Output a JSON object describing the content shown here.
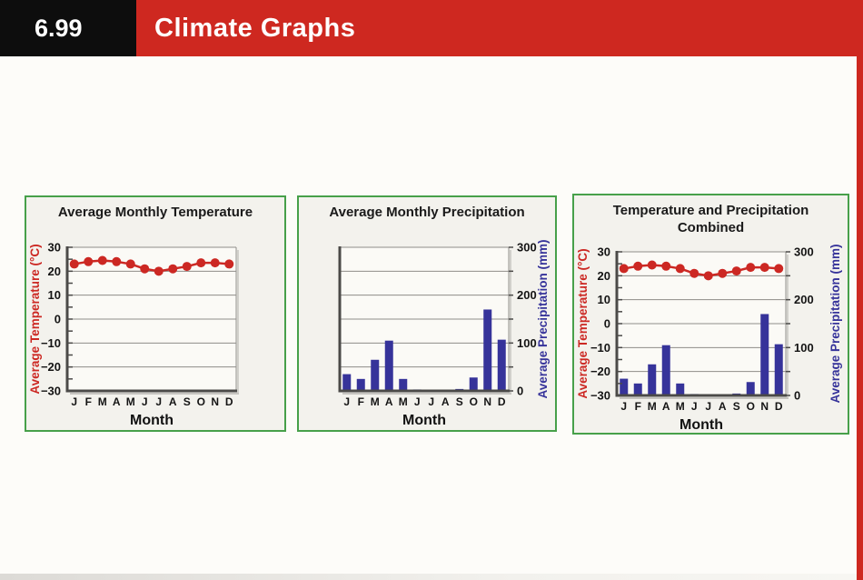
{
  "header": {
    "lesson_number": "6.99",
    "title": "Climate Graphs"
  },
  "colors": {
    "page_bg": "#fdfcf9",
    "header_black": "#0d0d0d",
    "header_red": "#ce2820",
    "panel_bg": "#f3f2ed",
    "panel_border": "#47a04a",
    "plot_bg": "#fbfaf6",
    "grid": "#8f8d89",
    "axis": "#4b4a48",
    "axis_shadow": "#c6c4c0",
    "temp": "#cc2823",
    "precip": "#36339a",
    "tick_text": "#141414"
  },
  "chart_data": [
    {
      "type": "line",
      "title_lines": [
        "Average Monthly Temperature"
      ],
      "categories": [
        "J",
        "F",
        "M",
        "A",
        "M",
        "J",
        "J",
        "A",
        "S",
        "O",
        "N",
        "D"
      ],
      "series": [
        {
          "name": "Average Temperature (°C)",
          "kind": "line",
          "axis": "left",
          "values": [
            23,
            24,
            24.5,
            24,
            23,
            21,
            20,
            21,
            22,
            23.5,
            23.5,
            23
          ]
        }
      ],
      "xlabel": "Month",
      "y_left": {
        "label": "Average Temperature (°C)",
        "lim": [
          -30,
          30
        ],
        "tick_labels": [
          "30",
          "20",
          "10",
          "0",
          "−10",
          "−20",
          "−30"
        ],
        "minor_step": 5
      },
      "grid": "on",
      "legend": "none"
    },
    {
      "type": "bar",
      "title_lines": [
        "Average Monthly Precipitation"
      ],
      "categories": [
        "J",
        "F",
        "M",
        "A",
        "M",
        "J",
        "J",
        "A",
        "S",
        "O",
        "N",
        "D"
      ],
      "series": [
        {
          "name": "Average Precipitation (mm)",
          "kind": "bar",
          "axis": "right",
          "values": [
            35,
            25,
            65,
            105,
            25,
            3,
            2,
            2,
            4,
            28,
            170,
            107
          ]
        }
      ],
      "xlabel": "Month",
      "y_right": {
        "label": "Average Precipitation (mm)",
        "lim": [
          0,
          300
        ],
        "tick_labels": [
          "300",
          "200",
          "100",
          "0"
        ],
        "minor_step": 50
      },
      "grid": "on",
      "legend": "none"
    },
    {
      "type": "combo",
      "title_lines": [
        "Temperature and Precipitation",
        "Combined"
      ],
      "categories": [
        "J",
        "F",
        "M",
        "A",
        "M",
        "J",
        "J",
        "A",
        "S",
        "O",
        "N",
        "D"
      ],
      "series": [
        {
          "name": "Average Temperature (°C)",
          "kind": "line",
          "axis": "left",
          "values": [
            23,
            24,
            24.5,
            24,
            23,
            21,
            20,
            21,
            22,
            23.5,
            23.5,
            23
          ]
        },
        {
          "name": "Average Precipitation (mm)",
          "kind": "bar",
          "axis": "right",
          "values": [
            35,
            25,
            65,
            105,
            25,
            3,
            2,
            2,
            4,
            28,
            170,
            107
          ]
        }
      ],
      "xlabel": "Month",
      "y_left": {
        "label": "Average Temperature (°C)",
        "lim": [
          -30,
          30
        ],
        "tick_labels": [
          "30",
          "20",
          "10",
          "0",
          "−10",
          "−20",
          "−30"
        ],
        "minor_step": 5
      },
      "y_right": {
        "label": "Average Precipitation (mm)",
        "lim": [
          0,
          300
        ],
        "tick_labels": [
          "300",
          "200",
          "100",
          "0"
        ],
        "minor_step": 50
      },
      "grid": "on",
      "legend": "none"
    }
  ]
}
